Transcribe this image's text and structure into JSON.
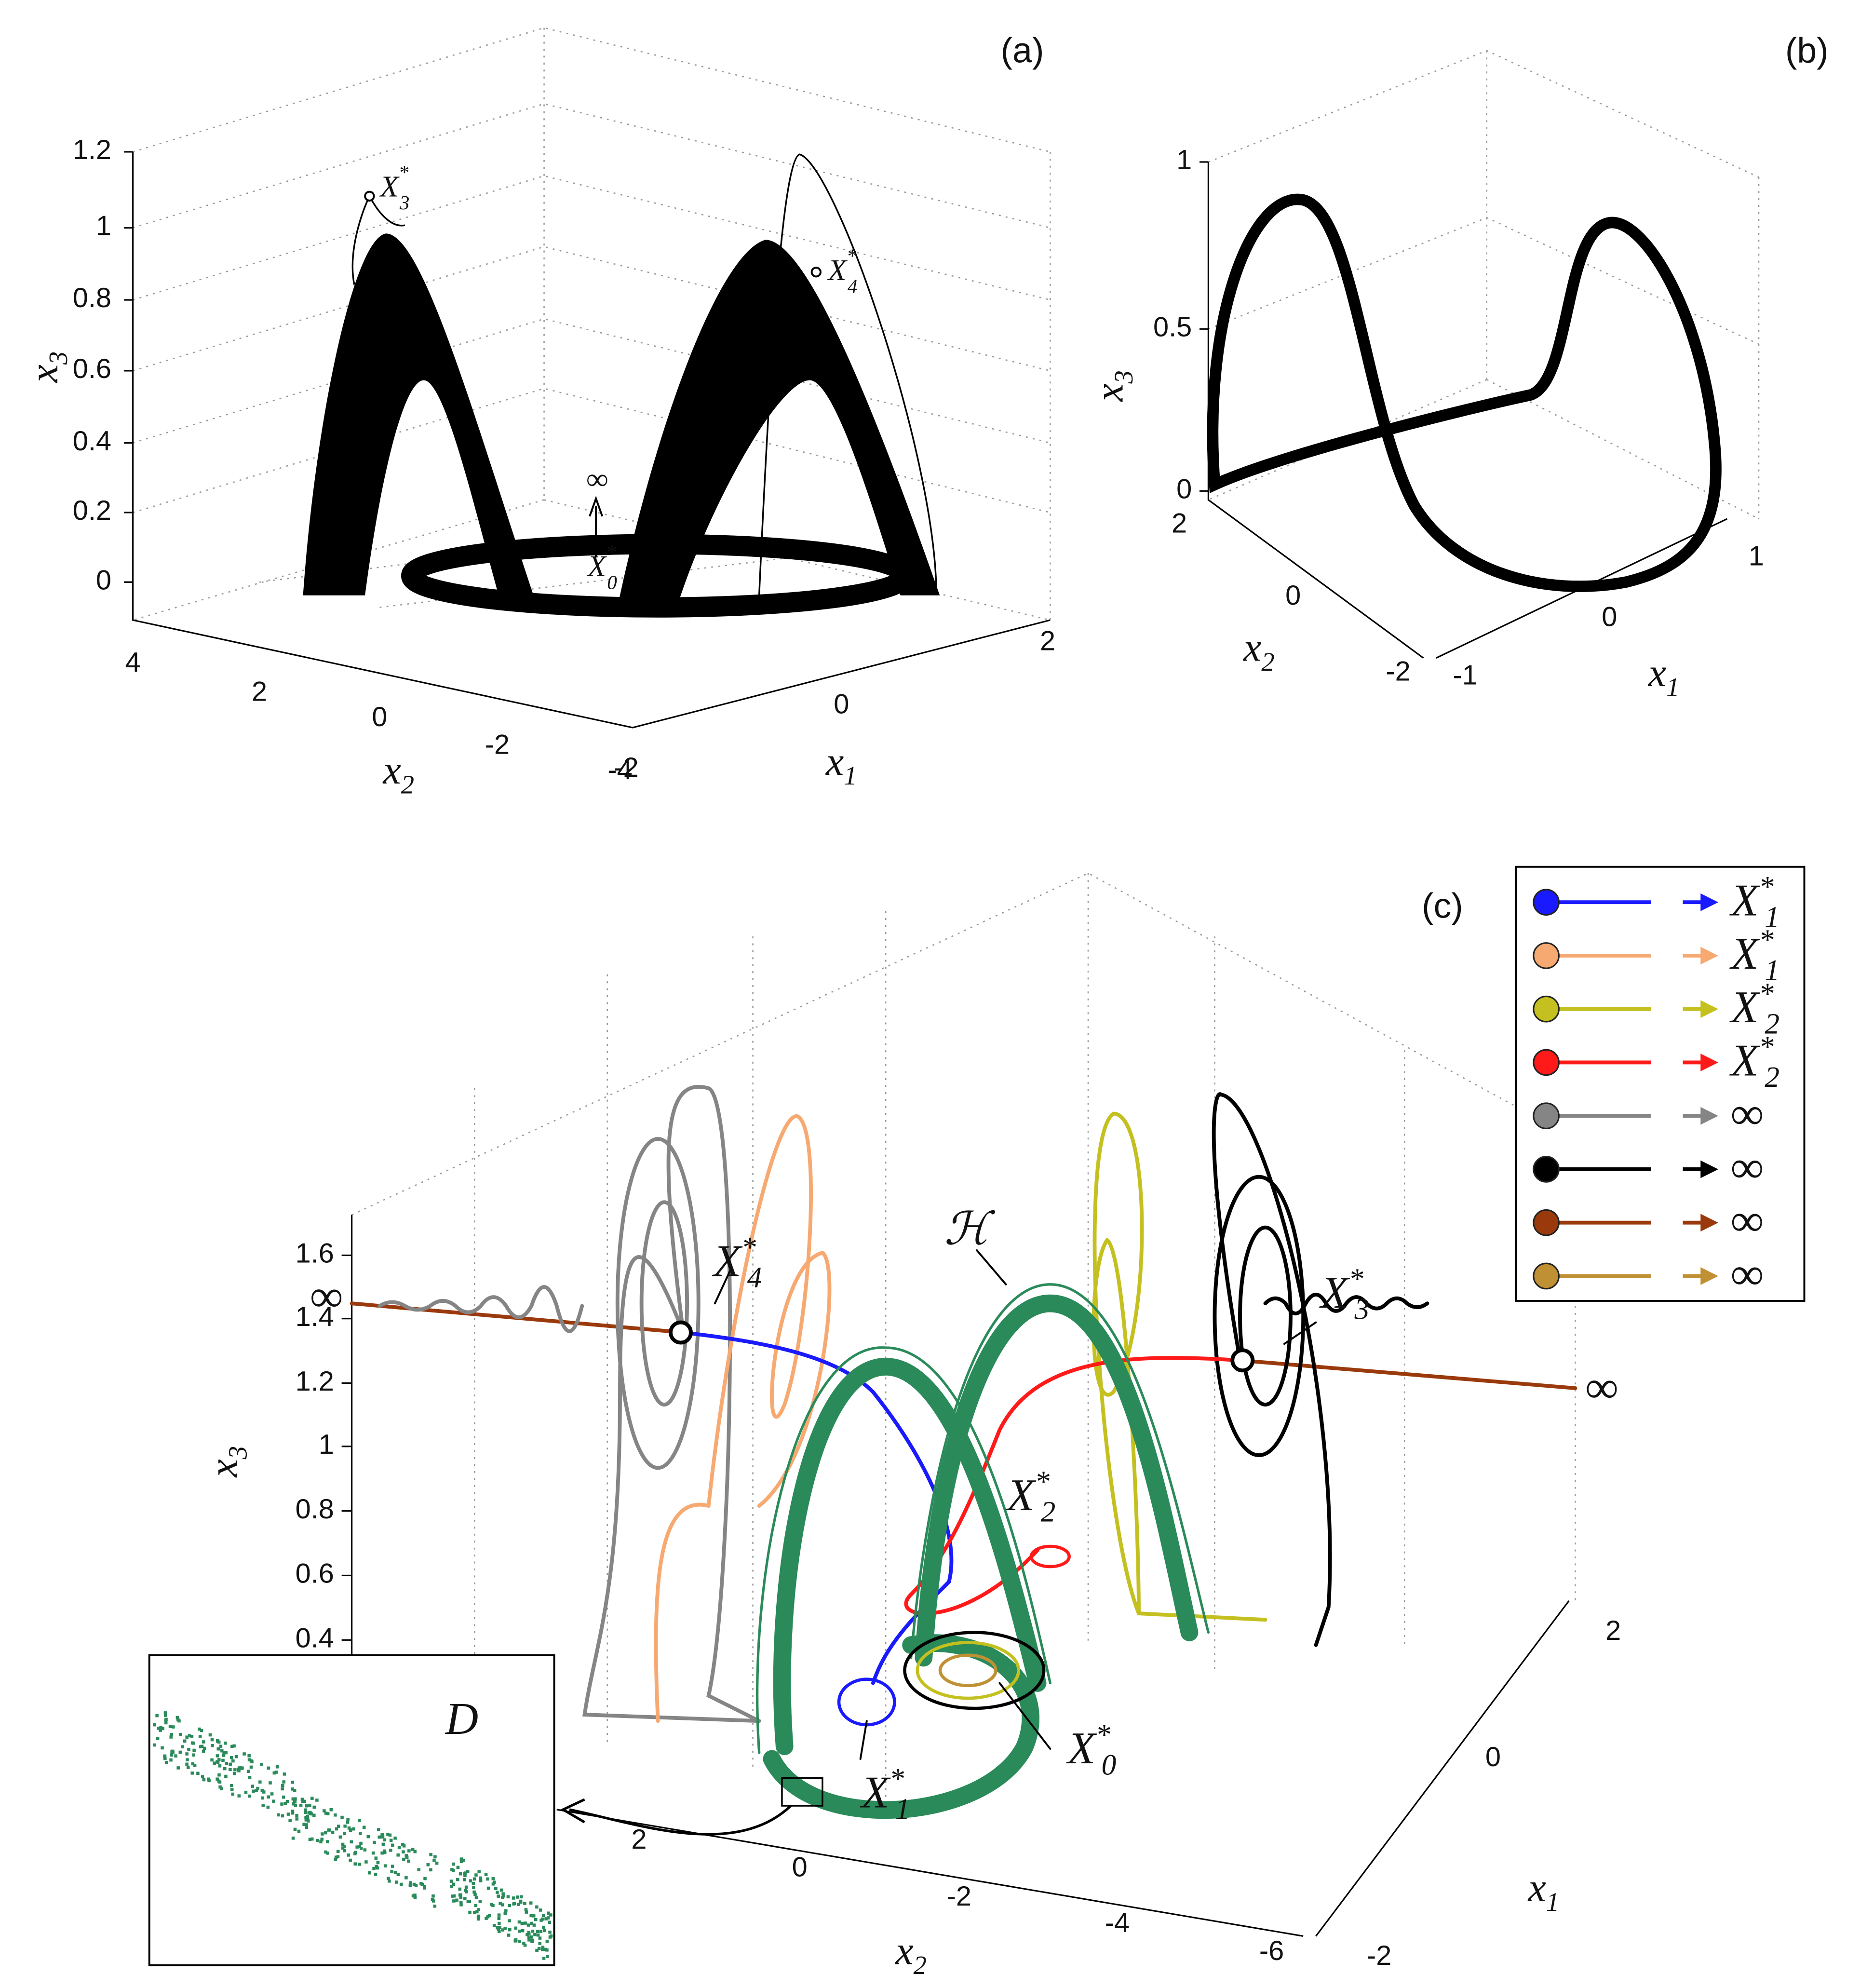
{
  "panel_a": {
    "label": "(a)",
    "x3_ticks": [
      "1.2",
      "1",
      "0.8",
      "0.6",
      "0.4",
      "0.2",
      "0"
    ],
    "x2_ticks": [
      "4",
      "2",
      "0",
      "-2",
      "-4"
    ],
    "x1_ticks": [
      "-2",
      "0",
      "2"
    ],
    "x3_label": {
      "base": "x",
      "sub": "3"
    },
    "x2_label": {
      "base": "x",
      "sub": "2"
    },
    "x1_label": {
      "base": "x",
      "sub": "1"
    },
    "annotations": [
      {
        "base": "X",
        "sup": "*",
        "sub": "3"
      },
      {
        "base": "X",
        "sup": "*",
        "sub": "4"
      },
      {
        "base": "X",
        "sup": "*",
        "sub": "0"
      },
      "∞"
    ]
  },
  "panel_b": {
    "label": "(b)",
    "x3_ticks": [
      "1",
      "0.5",
      "0"
    ],
    "x2_ticks": [
      "2",
      "0",
      "-2"
    ],
    "x1_ticks": [
      "-1",
      "0",
      "1"
    ],
    "x3_label": {
      "base": "x",
      "sub": "3"
    },
    "x2_label": {
      "base": "x",
      "sub": "2"
    },
    "x1_label": {
      "base": "x",
      "sub": "1"
    }
  },
  "panel_c": {
    "label": "(c)",
    "x3_ticks": [
      "1.6",
      "1.4",
      "1.2",
      "1",
      "0.8",
      "0.6",
      "0.4"
    ],
    "x2_ticks": [
      "2",
      "0",
      "-2",
      "-4",
      "-6"
    ],
    "x1_ticks": [
      "-2",
      "0",
      "2"
    ],
    "x3_label": {
      "base": "x",
      "sub": "3"
    },
    "x2_label": {
      "base": "x",
      "sub": "2"
    },
    "x1_label": {
      "base": "x",
      "sub": "1"
    },
    "annotations": [
      {
        "base": "X",
        "sup": "*",
        "sub": "4"
      },
      {
        "base": "X",
        "sup": "*",
        "sub": "3"
      },
      {
        "base": "X",
        "sup": "*",
        "sub": "2"
      },
      {
        "base": "X",
        "sup": "*",
        "sub": "1"
      },
      {
        "base": "X",
        "sup": "*",
        "sub": "0"
      },
      "∞",
      "∞",
      "ℋ"
    ],
    "inset_label": "D",
    "legend": [
      {
        "color": "#1a1aff",
        "label": {
          "base": "X",
          "sup": "*",
          "sub": "1"
        }
      },
      {
        "color": "#f7a972",
        "label": {
          "base": "X",
          "sup": "*",
          "sub": "1"
        }
      },
      {
        "color": "#c4c020",
        "label": {
          "base": "X",
          "sup": "*",
          "sub": "2"
        }
      },
      {
        "color": "#ff1a1a",
        "label": {
          "base": "X",
          "sup": "*",
          "sub": "2"
        }
      },
      {
        "color": "#858585",
        "label": "∞"
      },
      {
        "color": "#000000",
        "label": "∞"
      },
      {
        "color": "#9a3a0c",
        "label": "∞"
      },
      {
        "color": "#c09034",
        "label": "∞"
      }
    ]
  }
}
